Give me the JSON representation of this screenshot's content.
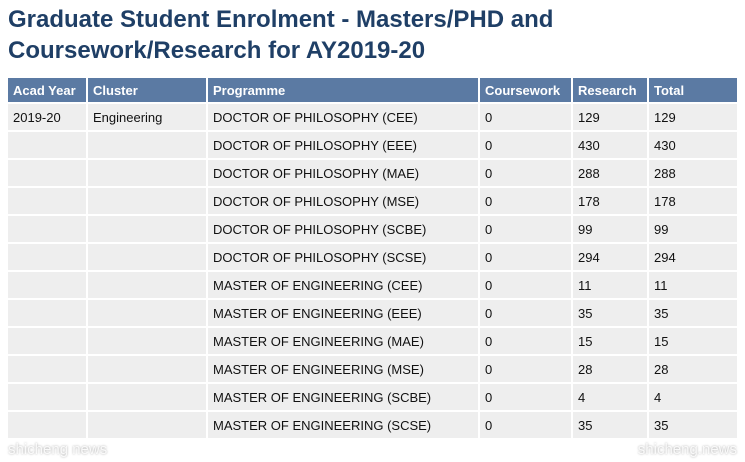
{
  "title": "Graduate Student Enrolment - Masters/PHD and Coursework/Research for AY2019-20",
  "table": {
    "headers": [
      "Acad Year",
      "Cluster",
      "Programme",
      "Coursework",
      "Research",
      "Total"
    ],
    "rows": [
      [
        "2019-20",
        "Engineering",
        "DOCTOR OF PHILOSOPHY (CEE)",
        "0",
        "129",
        "129"
      ],
      [
        "",
        "",
        "DOCTOR OF PHILOSOPHY (EEE)",
        "0",
        "430",
        "430"
      ],
      [
        "",
        "",
        "DOCTOR OF PHILOSOPHY (MAE)",
        "0",
        "288",
        "288"
      ],
      [
        "",
        "",
        "DOCTOR OF PHILOSOPHY (MSE)",
        "0",
        "178",
        "178"
      ],
      [
        "",
        "",
        "DOCTOR OF PHILOSOPHY (SCBE)",
        "0",
        "99",
        "99"
      ],
      [
        "",
        "",
        "DOCTOR OF PHILOSOPHY (SCSE)",
        "0",
        "294",
        "294"
      ],
      [
        "",
        "",
        "MASTER OF ENGINEERING (CEE)",
        "0",
        "11",
        "11"
      ],
      [
        "",
        "",
        "MASTER OF ENGINEERING (EEE)",
        "0",
        "35",
        "35"
      ],
      [
        "",
        "",
        "MASTER OF ENGINEERING (MAE)",
        "0",
        "15",
        "15"
      ],
      [
        "",
        "",
        "MASTER OF ENGINEERING (MSE)",
        "0",
        "28",
        "28"
      ],
      [
        "",
        "",
        "MASTER OF ENGINEERING (SCBE)",
        "0",
        "4",
        "4"
      ],
      [
        "",
        "",
        "MASTER OF ENGINEERING (SCSE)",
        "0",
        "35",
        "35"
      ]
    ]
  },
  "watermark": {
    "left": "shicheng news",
    "right": "shicheng.news"
  }
}
